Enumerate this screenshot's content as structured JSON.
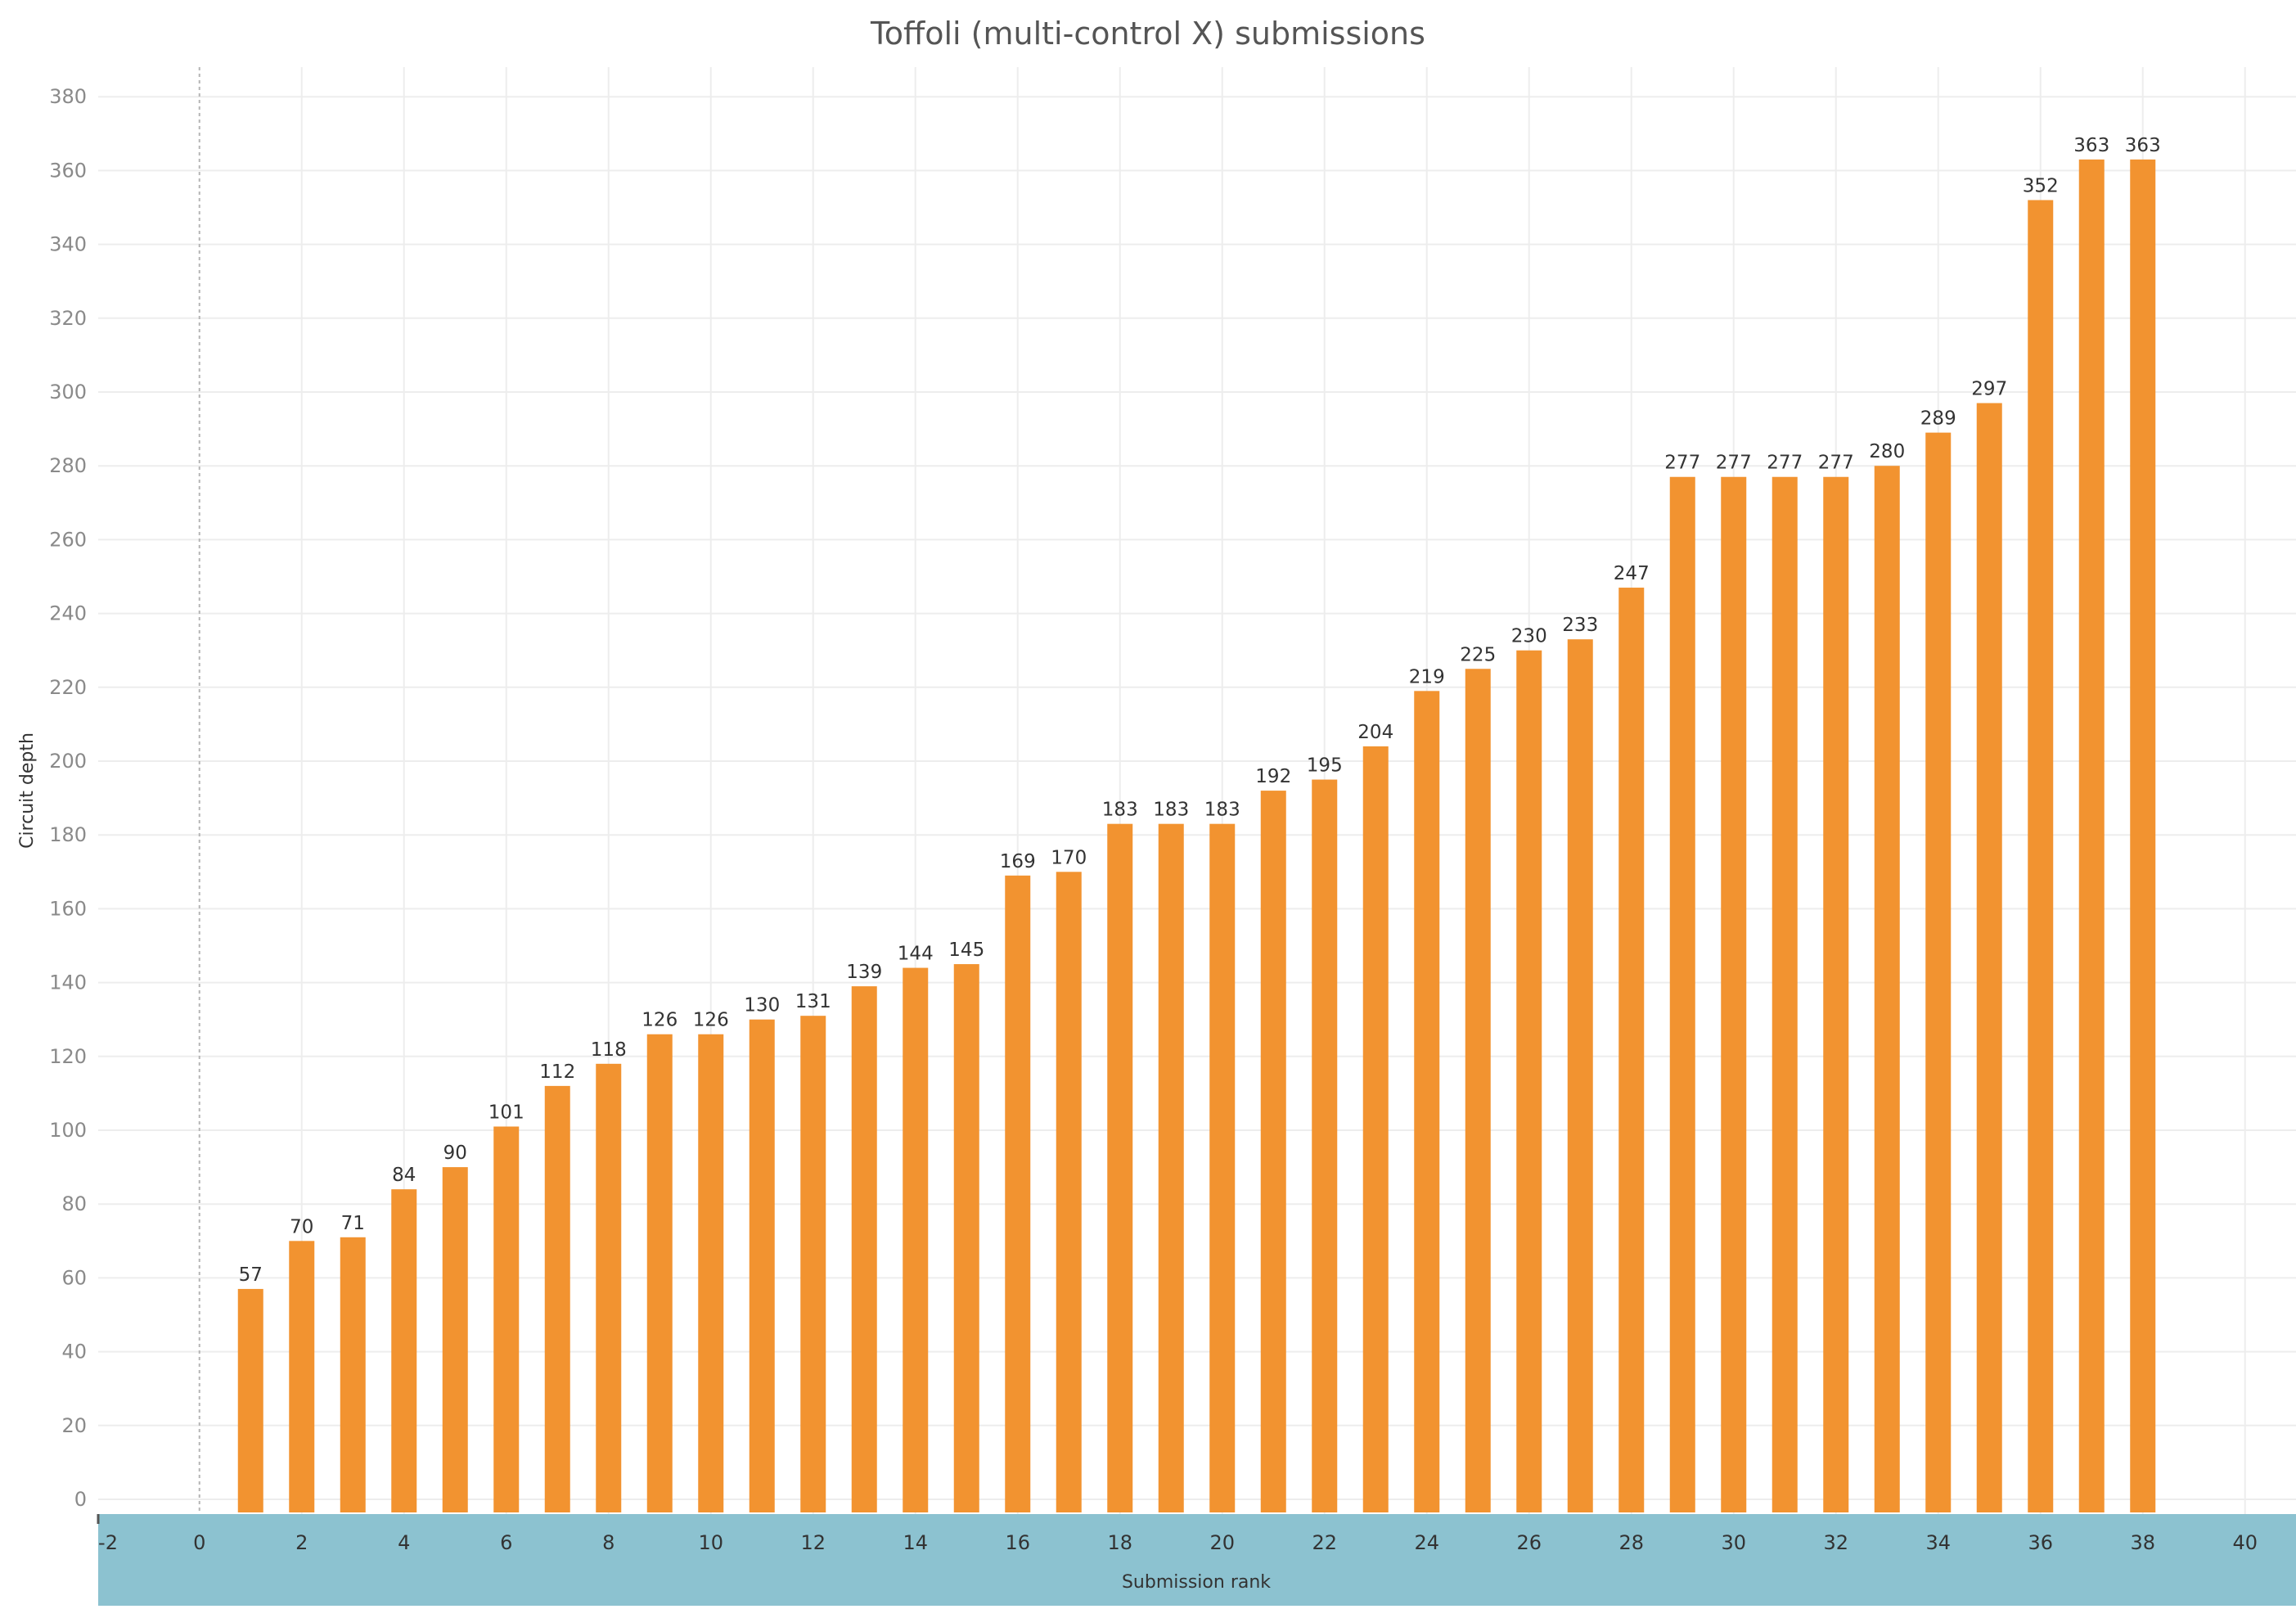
{
  "chart_data": {
    "type": "bar",
    "title": "Toffoli (multi-control X) submissions",
    "xlabel": "Submission rank",
    "ylabel": "Circuit depth",
    "x": [
      1,
      2,
      3,
      4,
      5,
      6,
      7,
      8,
      9,
      10,
      11,
      12,
      13,
      14,
      15,
      16,
      17,
      18,
      19,
      20,
      21,
      22,
      23,
      24,
      25,
      26,
      27,
      28,
      29,
      30,
      31,
      32,
      33,
      34,
      35,
      36,
      37,
      38
    ],
    "values": [
      57,
      70,
      71,
      84,
      90,
      101,
      112,
      118,
      126,
      126,
      130,
      131,
      139,
      144,
      145,
      169,
      170,
      183,
      183,
      183,
      192,
      195,
      204,
      219,
      225,
      230,
      233,
      247,
      277,
      277,
      277,
      277,
      280,
      289,
      297,
      352,
      363,
      363
    ],
    "xlim": [
      -2,
      41
    ],
    "ylim": [
      -3,
      390
    ],
    "xticks": [
      "-2",
      "0",
      "2",
      "4",
      "6",
      "8",
      "10",
      "12",
      "14",
      "16",
      "18",
      "20",
      "22",
      "24",
      "26",
      "28",
      "30",
      "32",
      "34",
      "36",
      "38",
      "40"
    ],
    "yticks": [
      "0",
      "20",
      "40",
      "60",
      "80",
      "100",
      "120",
      "140",
      "160",
      "180",
      "200",
      "220",
      "240",
      "260",
      "280",
      "300",
      "320",
      "340",
      "360",
      "380"
    ],
    "grid": true,
    "colors": {
      "bar": "#f29330",
      "axis_band": "#8cc2d0",
      "grid": "#ededed",
      "zero_line": "#b5b5b5"
    }
  }
}
